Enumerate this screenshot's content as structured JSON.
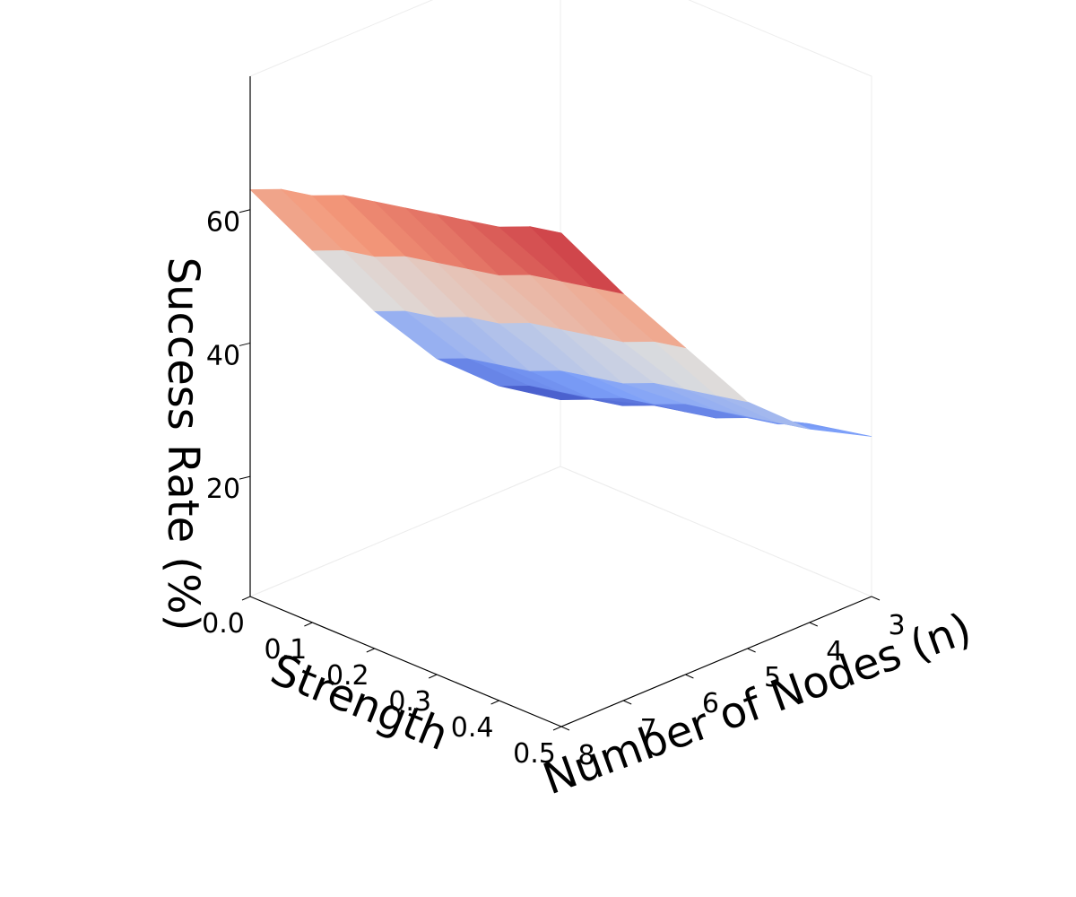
{
  "chart_data": {
    "type": "surface3d",
    "title": "",
    "colormap": "coolwarm",
    "xlabel": "Strength",
    "ylabel": "Number of Nodes (n)",
    "zlabel": "Success Rate (%)",
    "strength": [
      0.0,
      0.05,
      0.1,
      0.15,
      0.2,
      0.25,
      0.3,
      0.35,
      0.4,
      0.45,
      0.5
    ],
    "nodes": [
      3,
      4,
      5,
      6,
      7,
      8
    ],
    "x_ticks": [
      "0.0",
      "0.1",
      "0.2",
      "0.3",
      "0.4",
      "0.5"
    ],
    "y_ticks": [
      "3",
      "4",
      "5",
      "6",
      "7",
      "8"
    ],
    "z_ticks": [
      "20",
      "40",
      "60"
    ],
    "success_rate": [
      [
        12,
        14,
        15,
        17,
        18,
        19,
        21,
        22,
        24,
        25,
        26
      ],
      [
        18,
        20,
        21,
        22,
        24,
        25,
        27,
        28,
        29,
        30,
        31
      ],
      [
        26,
        28,
        29,
        30,
        32,
        33,
        34,
        36,
        37,
        38,
        39
      ],
      [
        37,
        39,
        40,
        42,
        43,
        45,
        46,
        47,
        48,
        50,
        51
      ],
      [
        50,
        52,
        53,
        55,
        56,
        57,
        58,
        60,
        61,
        62,
        63
      ],
      [
        63,
        65,
        66,
        68,
        69,
        70,
        71,
        72,
        73,
        75,
        76
      ]
    ],
    "xlim": [
      0.0,
      0.5
    ],
    "ylim": [
      3,
      8
    ],
    "zlim": [
      2,
      80
    ],
    "grid": false
  }
}
